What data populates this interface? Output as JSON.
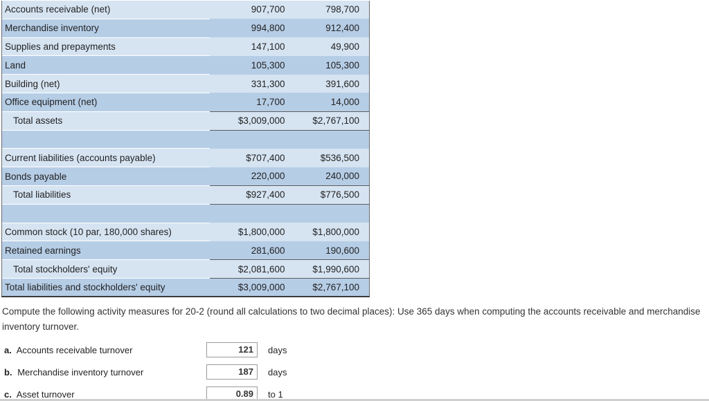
{
  "balance_sheet": {
    "rows": [
      {
        "label": "Accounts receivable (net)",
        "a": "907,700",
        "b": "798,700"
      },
      {
        "label": "Merchandise inventory",
        "a": "994,800",
        "b": "912,400"
      },
      {
        "label": "Supplies and prepayments",
        "a": "147,100",
        "b": "49,900"
      },
      {
        "label": "Land",
        "a": "105,300",
        "b": "105,300"
      },
      {
        "label": "Building (net)",
        "a": "331,300",
        "b": "391,600"
      },
      {
        "label": "Office equipment (net)",
        "a": "17,700",
        "b": "14,000"
      },
      {
        "label": "Total assets",
        "a": "$3,009,000",
        "b": "$2,767,100"
      },
      {
        "label": "",
        "a": "",
        "b": ""
      },
      {
        "label": "Current liabilities (accounts payable)",
        "a": "$707,400",
        "b": "$536,500"
      },
      {
        "label": "Bonds payable",
        "a": "220,000",
        "b": "240,000"
      },
      {
        "label": "Total liabilities",
        "a": "$927,400",
        "b": "$776,500"
      },
      {
        "label": "",
        "a": "",
        "b": ""
      },
      {
        "label": "Common stock (10 par, 180,000 shares)",
        "a": "$1,800,000",
        "b": "$1,800,000"
      },
      {
        "label": "Retained earnings",
        "a": "281,600",
        "b": "190,600"
      },
      {
        "label": "Total stockholders' equity",
        "a": "$2,081,600",
        "b": "$1,990,600"
      },
      {
        "label": "Total liabilities and stockholders' equity",
        "a": "$3,009,000",
        "b": "$2,767,100"
      }
    ]
  },
  "instructions": "Compute the following activity measures for 20-2 (round all calculations to two decimal places): Use 365 days when computing the accounts receivable and merchandise inventory turnover.",
  "questions": [
    {
      "letter": "a.",
      "label": "Accounts receivable turnover",
      "answer": "121",
      "unit": "days"
    },
    {
      "letter": "b.",
      "label": "Merchandise inventory turnover",
      "answer": "187",
      "unit": "days"
    },
    {
      "letter": "c.",
      "label": "Asset turnover",
      "answer": "0.89",
      "unit": "to 1"
    }
  ]
}
